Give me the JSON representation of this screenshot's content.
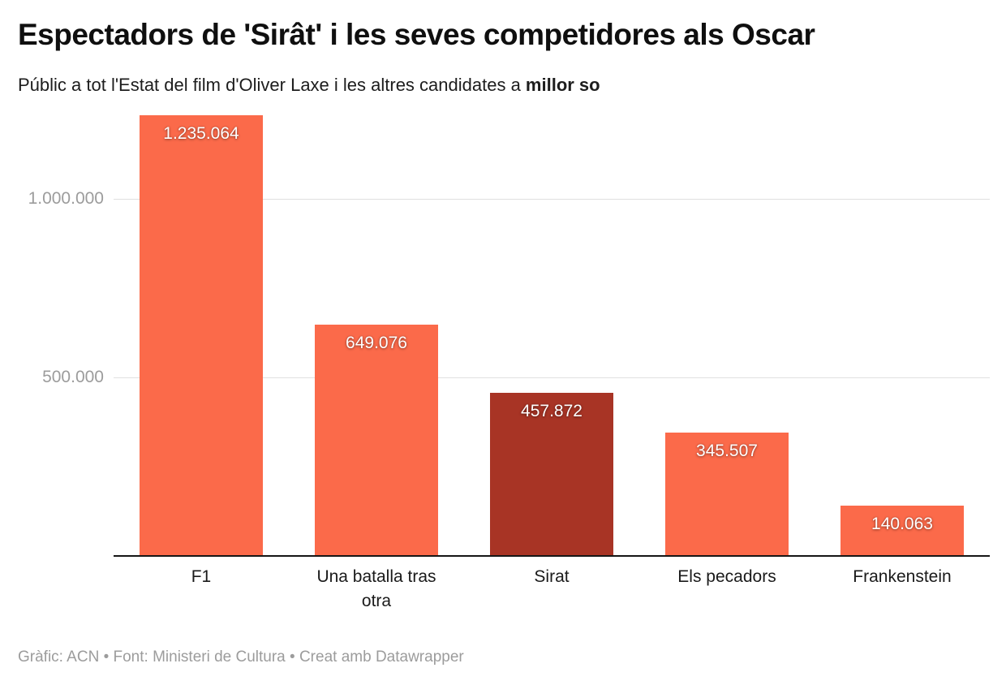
{
  "header": {
    "title": "Espectadors de 'Sirât' i les seves competidores als Oscar",
    "subtitle_regular": "Públic a tot l'Estat del film d'Oliver Laxe i les altres candidates a ",
    "subtitle_bold": "millor so"
  },
  "chart_data": {
    "type": "bar",
    "title": "Espectadors de 'Sirât' i les seves competidores als Oscar",
    "categories": [
      "F1",
      "Una batalla tras otra",
      "Sirat",
      "Els pecadors",
      "Frankenstein"
    ],
    "values": [
      1235064,
      649076,
      457872,
      345507,
      140063
    ],
    "value_labels": [
      "1.235.064",
      "649.076",
      "457.872",
      "345.507",
      "140.063"
    ],
    "highlighted_category": "Sirat",
    "colors": {
      "bar": "#fb6a4a",
      "highlight": "#a83425"
    },
    "y_ticks": [
      500000,
      1000000
    ],
    "ytick_labels": [
      "500.000",
      "1.000.000"
    ],
    "ylim": [
      0,
      1235064
    ],
    "grid": "horizontal-only",
    "legend": "none",
    "xlabel": "",
    "ylabel": ""
  },
  "footer": {
    "credit": "Gràfic: ACN • Font: Ministeri de Cultura • Creat amb Datawrapper"
  }
}
